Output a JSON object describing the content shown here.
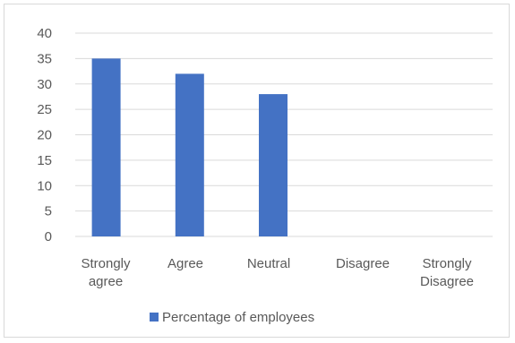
{
  "chart_data": {
    "type": "bar",
    "categories": [
      "Strongly agree",
      "Agree",
      "Neutral",
      "Disagree",
      "Strongly Disagree"
    ],
    "category_lines": [
      [
        "Strongly",
        "agree"
      ],
      [
        "Agree"
      ],
      [
        "Neutral"
      ],
      [
        "Disagree"
      ],
      [
        "Strongly",
        "Disagree"
      ]
    ],
    "series": [
      {
        "name": "Percentage of employees",
        "values": [
          35,
          32,
          28,
          0,
          0
        ],
        "color": "#4472c4"
      }
    ],
    "yticks": [
      "0",
      "5",
      "10",
      "15",
      "20",
      "25",
      "30",
      "35",
      "40"
    ],
    "ylim": [
      0,
      40
    ],
    "grid": true,
    "legend_position": "bottom",
    "gridline_color": "#d9d9d9"
  }
}
